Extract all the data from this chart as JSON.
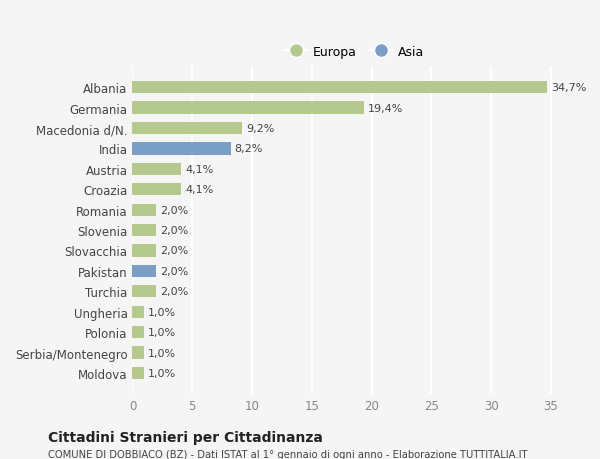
{
  "categories": [
    "Albania",
    "Germania",
    "Macedonia d/N.",
    "India",
    "Austria",
    "Croazia",
    "Romania",
    "Slovenia",
    "Slovacchia",
    "Pakistan",
    "Turchia",
    "Ungheria",
    "Polonia",
    "Serbia/Montenegro",
    "Moldova"
  ],
  "values": [
    34.7,
    19.4,
    9.2,
    8.2,
    4.1,
    4.1,
    2.0,
    2.0,
    2.0,
    2.0,
    2.0,
    1.0,
    1.0,
    1.0,
    1.0
  ],
  "labels": [
    "34,7%",
    "19,4%",
    "9,2%",
    "8,2%",
    "4,1%",
    "4,1%",
    "2,0%",
    "2,0%",
    "2,0%",
    "2,0%",
    "2,0%",
    "1,0%",
    "1,0%",
    "1,0%",
    "1,0%"
  ],
  "colors": [
    "#b5c98e",
    "#b5c98e",
    "#b5c98e",
    "#7b9fc4",
    "#b5c98e",
    "#b5c98e",
    "#b5c98e",
    "#b5c98e",
    "#b5c98e",
    "#7b9fc4",
    "#b5c98e",
    "#b5c98e",
    "#b5c98e",
    "#b5c98e",
    "#b5c98e"
  ],
  "europa_color": "#b5c98e",
  "asia_color": "#7b9fc4",
  "legend_europa": "Europa",
  "legend_asia": "Asia",
  "xlim": [
    0,
    37
  ],
  "xticks": [
    0,
    5,
    10,
    15,
    20,
    25,
    30,
    35
  ],
  "title": "Cittadini Stranieri per Cittadinanza",
  "subtitle": "COMUNE DI DOBBIACO (BZ) - Dati ISTAT al 1° gennaio di ogni anno - Elaborazione TUTTITALIA.IT",
  "bg_color": "#f5f5f5",
  "grid_color": "#ffffff",
  "bar_height": 0.6
}
